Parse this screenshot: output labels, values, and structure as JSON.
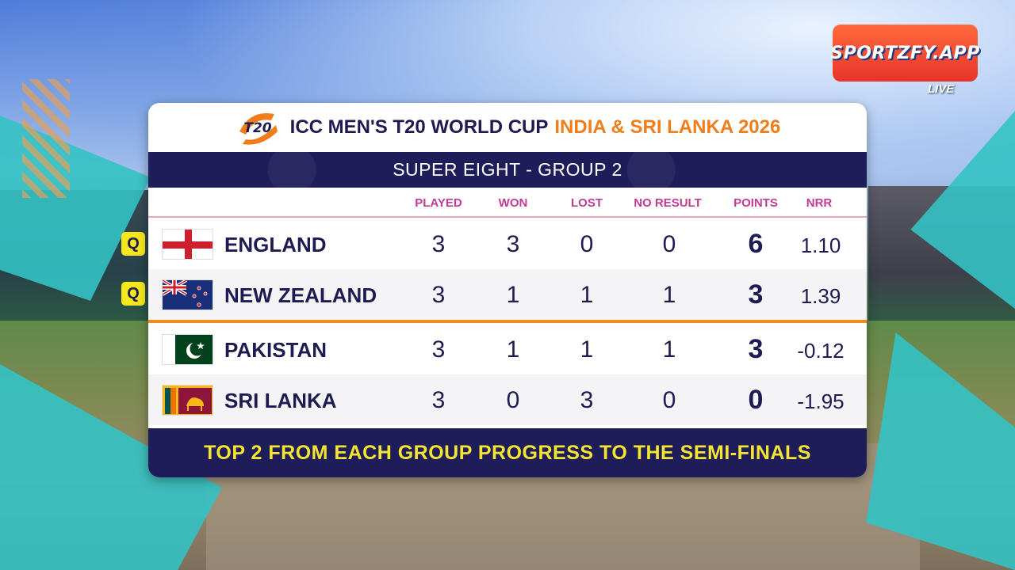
{
  "brand": {
    "logo_text": "SPORTZFY.APP",
    "live_label": "LIVE"
  },
  "header": {
    "title": "ICC MEN'S T20 WORLD CUP",
    "title_accent": "INDIA & SRI LANKA 2026",
    "t20_logo_text": "T20"
  },
  "stage": "SUPER EIGHT - GROUP 2",
  "columns": [
    "PLAYED",
    "WON",
    "LOST",
    "NO RESULT",
    "POINTS",
    "NRR"
  ],
  "teams": [
    {
      "name": "ENGLAND",
      "flag": "england-flag-icon",
      "qualified": true,
      "q_label": "Q",
      "played": "3",
      "won": "3",
      "lost": "0",
      "no_result": "0",
      "points": "6",
      "nrr": "1.10"
    },
    {
      "name": "NEW ZEALAND",
      "flag": "new-zealand-flag-icon",
      "qualified": true,
      "q_label": "Q",
      "played": "3",
      "won": "1",
      "lost": "1",
      "no_result": "1",
      "points": "3",
      "nrr": "1.39"
    },
    {
      "name": "PAKISTAN",
      "flag": "pakistan-flag-icon",
      "qualified": false,
      "played": "3",
      "won": "1",
      "lost": "1",
      "no_result": "1",
      "points": "3",
      "nrr": "-0.12"
    },
    {
      "name": "SRI LANKA",
      "flag": "sri-lanka-flag-icon",
      "qualified": false,
      "played": "3",
      "won": "0",
      "lost": "3",
      "no_result": "0",
      "points": "0",
      "nrr": "-1.95"
    }
  ],
  "footer": "TOP 2 FROM EACH GROUP PROGRESS TO THE SEMI-FINALS",
  "colors": {
    "navy": "#1f1c5a",
    "orange": "#ef7d1a",
    "magenta": "#c23b93",
    "yellow": "#f3e531"
  }
}
